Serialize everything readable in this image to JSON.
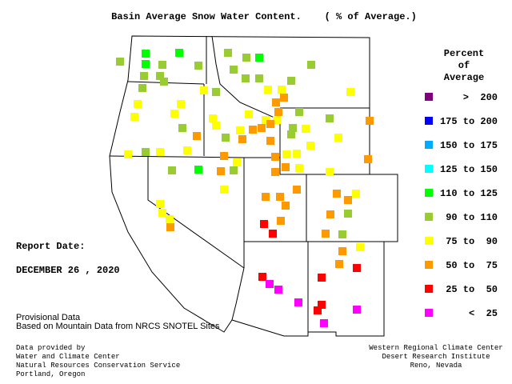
{
  "title": "Basin Average Snow Water Content.    ( % of Average.)",
  "legend": {
    "title": [
      "Percent",
      "of",
      "Average"
    ],
    "items": [
      {
        "label": ">  200",
        "color": "#800080"
      },
      {
        "label": "175 to 200",
        "color": "#0000ff"
      },
      {
        "label": "150 to 175",
        "color": "#00aaff"
      },
      {
        "label": "125 to 150",
        "color": "#00ffff"
      },
      {
        "label": "110 to 125",
        "color": "#00ff00"
      },
      {
        "label": "90 to 110",
        "color": "#99cc33"
      },
      {
        "label": "75 to  90",
        "color": "#ffff00"
      },
      {
        "label": "50 to  75",
        "color": "#ff9900"
      },
      {
        "label": "25 to  50",
        "color": "#ff0000"
      },
      {
        "label": "<  25",
        "color": "#ff00ff"
      }
    ]
  },
  "report_date_label": "Report Date:",
  "report_date": "DECEMBER 26 , 2020",
  "notes": [
    "Provisional Data",
    "Based on Mountain Data from NRCS SNOTEL Sites"
  ],
  "credits_left": [
    "Data provided by",
    "Water and Climate Center",
    "Natural Resources Conservation Service",
    "Portland, Oregon"
  ],
  "credits_right": [
    "Western Regional Climate Center",
    "Desert Research Institute",
    "Reno, Nevada"
  ]
}
